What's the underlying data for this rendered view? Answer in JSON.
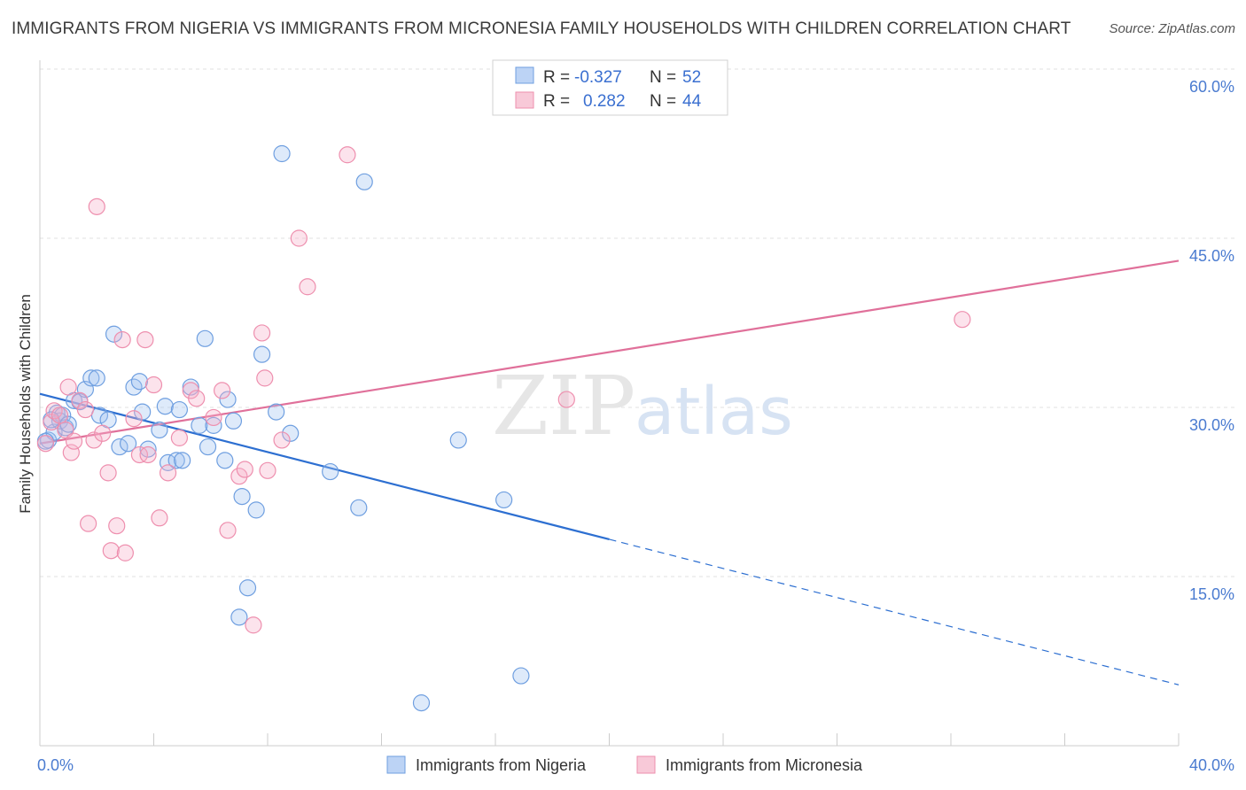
{
  "title": "IMMIGRANTS FROM NIGERIA VS IMMIGRANTS FROM MICRONESIA FAMILY HOUSEHOLDS WITH CHILDREN CORRELATION CHART",
  "source": "Source: ZipAtlas.com",
  "watermark": {
    "zip": "ZIP",
    "atlas": "atlas"
  },
  "colors": {
    "nigeria": "#6f9fe0",
    "micronesia": "#ee8fae",
    "nigeria_line": "#2d6fd1",
    "micronesia_line": "#e0709a"
  },
  "legend": {
    "r_label": "R =",
    "n_label": "N =",
    "nigeria_r": "-0.327",
    "nigeria_n": "52",
    "micronesia_r": "0.282",
    "micronesia_n": "44"
  },
  "chart_data": {
    "type": "scatter",
    "title": "IMMIGRANTS FROM NIGERIA VS IMMIGRANTS FROM MICRONESIA FAMILY HOUSEHOLDS WITH CHILDREN CORRELATION CHART",
    "xlabel": "",
    "ylabel": "Family Households with Children",
    "xlim": [
      0,
      40
    ],
    "ylim": [
      0,
      60
    ],
    "x_tick_labels": [
      "0.0%",
      "40.0%"
    ],
    "y_ticks": [
      15,
      30,
      45,
      60
    ],
    "y_tick_labels": [
      "15.0%",
      "30.0%",
      "45.0%",
      "60.0%"
    ],
    "grid": true,
    "series": [
      {
        "name": "Immigrants from Nigeria",
        "points": [
          [
            0.3,
            27.1
          ],
          [
            0.5,
            27.8
          ],
          [
            0.6,
            29.5
          ],
          [
            0.7,
            28.8
          ],
          [
            0.8,
            29.3
          ],
          [
            0.9,
            28.2
          ],
          [
            1.0,
            28.5
          ],
          [
            1.2,
            30.6
          ],
          [
            1.4,
            30.5
          ],
          [
            1.6,
            31.6
          ],
          [
            1.8,
            32.6
          ],
          [
            2.0,
            32.6
          ],
          [
            2.1,
            29.3
          ],
          [
            2.4,
            28.9
          ],
          [
            2.6,
            36.5
          ],
          [
            2.8,
            26.5
          ],
          [
            3.1,
            26.8
          ],
          [
            3.3,
            31.8
          ],
          [
            3.5,
            32.3
          ],
          [
            3.6,
            29.6
          ],
          [
            3.8,
            26.3
          ],
          [
            4.2,
            28.0
          ],
          [
            4.4,
            30.1
          ],
          [
            4.5,
            25.1
          ],
          [
            4.8,
            25.3
          ],
          [
            4.9,
            29.8
          ],
          [
            5.0,
            25.3
          ],
          [
            5.3,
            31.8
          ],
          [
            5.6,
            28.4
          ],
          [
            5.8,
            36.1
          ],
          [
            5.9,
            26.5
          ],
          [
            6.1,
            28.4
          ],
          [
            6.5,
            25.3
          ],
          [
            6.6,
            30.7
          ],
          [
            6.8,
            28.8
          ],
          [
            7.0,
            11.4
          ],
          [
            7.1,
            22.1
          ],
          [
            7.3,
            14.0
          ],
          [
            7.6,
            20.9
          ],
          [
            7.8,
            34.7
          ],
          [
            8.3,
            29.6
          ],
          [
            8.5,
            52.5
          ],
          [
            8.8,
            27.7
          ],
          [
            10.2,
            24.3
          ],
          [
            11.2,
            21.1
          ],
          [
            11.4,
            50.0
          ],
          [
            13.4,
            3.8
          ],
          [
            14.7,
            27.1
          ],
          [
            16.3,
            21.8
          ],
          [
            16.9,
            6.2
          ],
          [
            0.2,
            27.0
          ],
          [
            0.4,
            28.9
          ]
        ]
      },
      {
        "name": "Immigrants from Micronesia",
        "points": [
          [
            0.2,
            26.8
          ],
          [
            0.4,
            28.7
          ],
          [
            0.5,
            29.7
          ],
          [
            0.7,
            29.3
          ],
          [
            0.9,
            28.0
          ],
          [
            1.0,
            31.8
          ],
          [
            1.1,
            26.0
          ],
          [
            1.2,
            27.0
          ],
          [
            1.4,
            30.6
          ],
          [
            1.6,
            29.8
          ],
          [
            1.7,
            19.7
          ],
          [
            1.9,
            27.1
          ],
          [
            2.0,
            47.8
          ],
          [
            2.2,
            27.7
          ],
          [
            2.4,
            24.2
          ],
          [
            2.5,
            17.3
          ],
          [
            2.7,
            19.5
          ],
          [
            2.9,
            36.0
          ],
          [
            3.0,
            17.1
          ],
          [
            3.3,
            29.0
          ],
          [
            3.5,
            25.8
          ],
          [
            3.7,
            36.0
          ],
          [
            3.8,
            25.8
          ],
          [
            4.0,
            32.0
          ],
          [
            4.2,
            20.2
          ],
          [
            4.5,
            24.2
          ],
          [
            4.9,
            27.3
          ],
          [
            5.3,
            31.5
          ],
          [
            5.5,
            30.8
          ],
          [
            6.1,
            29.1
          ],
          [
            6.4,
            31.5
          ],
          [
            6.6,
            19.1
          ],
          [
            7.0,
            23.9
          ],
          [
            7.2,
            24.5
          ],
          [
            7.5,
            10.7
          ],
          [
            7.8,
            36.6
          ],
          [
            7.9,
            32.6
          ],
          [
            8.0,
            24.4
          ],
          [
            8.5,
            27.1
          ],
          [
            9.1,
            45.0
          ],
          [
            9.4,
            40.7
          ],
          [
            10.8,
            52.4
          ],
          [
            18.5,
            30.7
          ],
          [
            32.4,
            37.8
          ]
        ]
      }
    ],
    "trendlines": [
      {
        "series": "Immigrants from Nigeria",
        "x": [
          0,
          40
        ],
        "y": [
          31.2,
          5.4
        ],
        "solid_until_x": 20
      },
      {
        "series": "Immigrants from Micronesia",
        "x": [
          0,
          40
        ],
        "y": [
          26.8,
          43.0
        ]
      }
    ]
  }
}
